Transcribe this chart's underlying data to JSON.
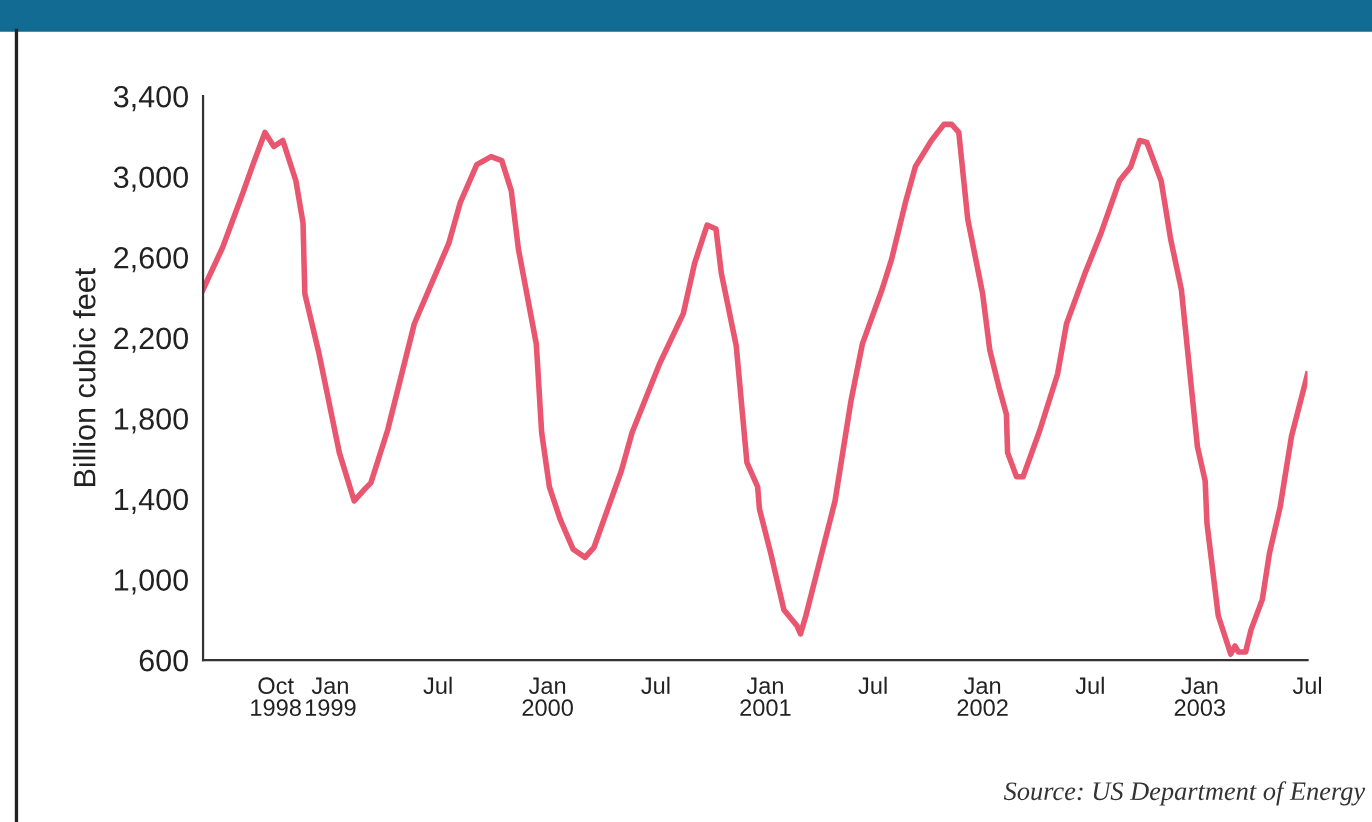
{
  "chart_data": {
    "type": "line",
    "ylabel": "Billion cubic feet",
    "annotations": [
      "Source: US Department of Energy"
    ],
    "x": [
      "1998-06-01",
      "1998-07-04",
      "1998-08-07",
      "1998-08-25",
      "1998-09-13",
      "1998-09-28",
      "1998-10-13",
      "1998-11-04",
      "1998-11-16",
      "1998-11-19",
      "1998-12-13",
      "1999-01-16",
      "1999-02-10",
      "1999-02-28",
      "1999-03-10",
      "1999-04-07",
      "1999-05-22",
      "1999-07-19",
      "1999-08-07",
      "1999-09-04",
      "1999-09-28",
      "1999-10-16",
      "1999-11-01",
      "1999-11-13",
      "1999-12-13",
      "1999-12-22",
      "2000-01-04",
      "2000-01-22",
      "2000-02-13",
      "2000-03-04",
      "2000-03-19",
      "2000-05-04",
      "2000-05-22",
      "2000-07-07",
      "2000-08-16",
      "2000-09-04",
      "2000-09-25",
      "2000-10-10",
      "2000-10-19",
      "2000-11-13",
      "2000-12-01",
      "2000-12-19",
      "2000-12-22",
      "2001-01-10",
      "2001-02-01",
      "2001-02-23",
      "2001-03-01",
      "2001-03-10",
      "2001-04-28",
      "2001-05-25",
      "2001-06-13",
      "2001-07-16",
      "2001-08-01",
      "2001-08-25",
      "2001-09-10",
      "2001-10-07",
      "2001-10-28",
      "2001-11-10",
      "2001-11-22",
      "2001-12-07",
      "2002-01-01",
      "2002-01-13",
      "2002-01-28",
      "2002-02-10",
      "2002-02-12",
      "2002-02-27",
      "2002-03-10",
      "2002-04-07",
      "2002-05-07",
      "2002-05-22",
      "2002-06-22",
      "2002-07-19",
      "2002-08-19",
      "2002-09-07",
      "2002-09-22",
      "2002-10-04",
      "2002-10-28",
      "2002-11-13",
      "2002-12-01",
      "2002-12-28",
      "2003-01-10",
      "2003-01-13",
      "2003-02-01",
      "2003-02-22",
      "2003-03-01",
      "2003-03-07",
      "2003-03-19",
      "2003-03-28",
      "2003-04-16",
      "2003-04-28",
      "2003-05-16",
      "2003-06-04",
      "2003-07-01"
    ],
    "series": [
      {
        "color": "#e8566f",
        "values": [
          2440,
          2650,
          2920,
          3070,
          3220,
          3150,
          3180,
          2980,
          2770,
          2420,
          2120,
          1630,
          1390,
          1450,
          1480,
          1740,
          2270,
          2670,
          2870,
          3060,
          3100,
          3080,
          2930,
          2640,
          2170,
          1730,
          1460,
          1300,
          1150,
          1110,
          1160,
          1540,
          1730,
          2070,
          2320,
          2570,
          2760,
          2740,
          2520,
          2160,
          1580,
          1460,
          1350,
          1130,
          850,
          770,
          730,
          820,
          1390,
          1890,
          2170,
          2440,
          2590,
          2880,
          3050,
          3180,
          3260,
          3260,
          3220,
          2790,
          2420,
          2140,
          1960,
          1820,
          1630,
          1510,
          1510,
          1740,
          2020,
          2270,
          2520,
          2720,
          2980,
          3050,
          3180,
          3170,
          2980,
          2690,
          2440,
          1660,
          1490,
          1280,
          820,
          630,
          670,
          640,
          640,
          750,
          900,
          1130,
          1360,
          1710,
          2020
        ]
      }
    ],
    "xlim": [
      "1998-06-01",
      "2003-07-01"
    ],
    "xticks": [
      {
        "value": "1998-10-01",
        "label": "Oct\n1998"
      },
      {
        "value": "1999-01-01",
        "label": "Jan\n1999"
      },
      {
        "value": "1999-07-01",
        "label": "Jul"
      },
      {
        "value": "2000-01-01",
        "label": "Jan\n2000"
      },
      {
        "value": "2000-07-01",
        "label": "Jul"
      },
      {
        "value": "2001-01-01",
        "label": "Jan\n2001"
      },
      {
        "value": "2001-07-01",
        "label": "Jul"
      },
      {
        "value": "2002-01-01",
        "label": "Jan\n2002"
      },
      {
        "value": "2002-07-01",
        "label": "Jul"
      },
      {
        "value": "2003-01-01",
        "label": "Jan\n2003"
      },
      {
        "value": "2003-07-01",
        "label": "Jul"
      }
    ],
    "ylim": [
      600,
      3400
    ],
    "yticks": [
      {
        "value": 600,
        "label": "600"
      },
      {
        "value": 1000,
        "label": "1,000"
      },
      {
        "value": 1400,
        "label": "1,400"
      },
      {
        "value": 1800,
        "label": "1,800"
      },
      {
        "value": 2200,
        "label": "2,200"
      },
      {
        "value": 2600,
        "label": "2,600"
      },
      {
        "value": 3000,
        "label": "3,000"
      },
      {
        "value": 3400,
        "label": "3,400"
      }
    ],
    "grid": false,
    "marker": "none",
    "line_style": "solid"
  }
}
